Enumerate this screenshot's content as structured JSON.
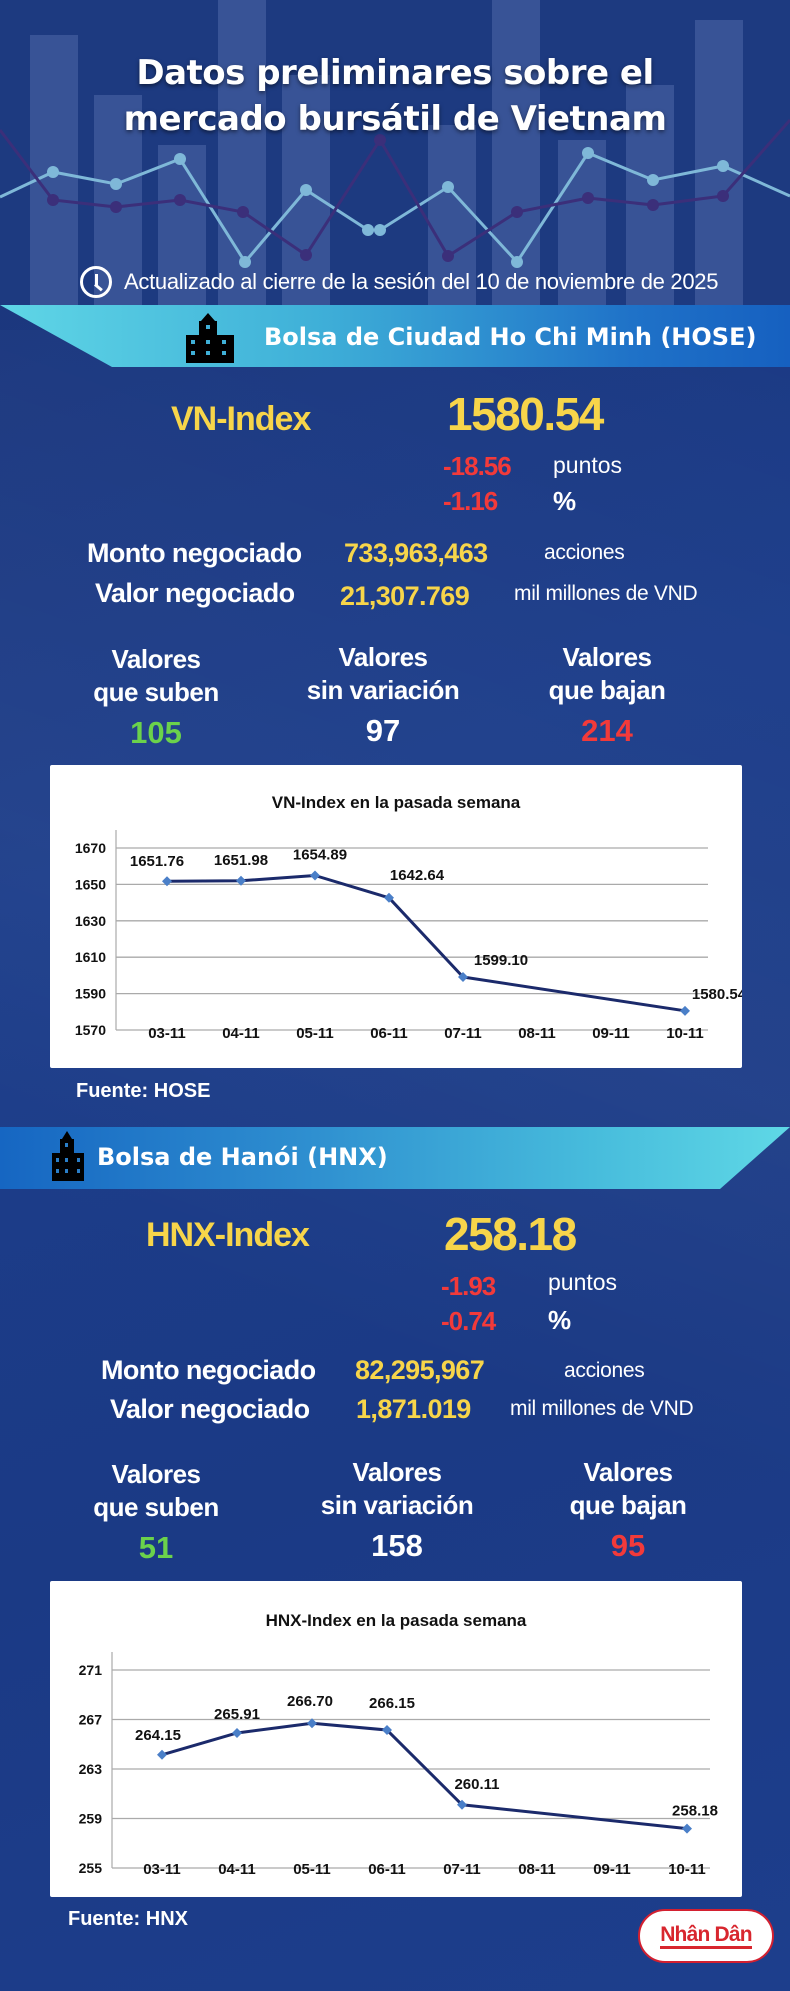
{
  "header": {
    "title_line1": "Datos preliminares sobre el",
    "title_line2": "mercado bursátil de Vietnam",
    "updated": "Actualizado al cierre de la sesión del 10 de noviembre de 2025",
    "icon": "clock-icon"
  },
  "colors": {
    "background": "#1a3a82",
    "yellow": "#f7d54a",
    "red": "#f23a3a",
    "green": "#6bd24b",
    "banner_light": "#5fd6e6",
    "banner_dark": "#1660c0",
    "chart_line": "#1b2a6b",
    "chart_marker": "#4a7fc8"
  },
  "hose": {
    "banner": "Bolsa de Ciudad Ho Chi Minh (HOSE)",
    "icon": "building-icon",
    "index_label": "VN-Index",
    "index_value": "1580.54",
    "change_points": "-18.56",
    "points_unit": "puntos",
    "change_pct": "-1.16",
    "pct_unit": "%",
    "volume_label": "Monto negociado",
    "volume_value": "733,963,463",
    "volume_unit": "acciones",
    "value_label": "Valor negociado",
    "value_value": "21,307.769",
    "value_unit": "mil millones de VND",
    "up_label_1": "Valores",
    "up_label_2": "que suben",
    "up_count": "105",
    "flat_label_1": "Valores",
    "flat_label_2": "sin variación",
    "flat_count": "97",
    "down_label_1": "Valores",
    "down_label_2": "que bajan",
    "down_count": "214",
    "source": "Fuente: HOSE"
  },
  "hnx": {
    "banner": "Bolsa de Hanói (HNX)",
    "icon": "building-icon",
    "index_label": "HNX-Index",
    "index_value": "258.18",
    "change_points": "-1.93",
    "points_unit": "puntos",
    "change_pct": "-0.74",
    "pct_unit": "%",
    "volume_label": "Monto negociado",
    "volume_value": "82,295,967",
    "volume_unit": "acciones",
    "value_label": "Valor negociado",
    "value_value": "1,871.019",
    "value_unit": "mil millones de VND",
    "up_label_1": "Valores",
    "up_label_2": "que suben",
    "up_count": "51",
    "flat_label_1": "Valores",
    "flat_label_2": "sin variación",
    "flat_count": "158",
    "down_label_1": "Valores",
    "down_label_2": "que bajan",
    "down_count": "95",
    "source": "Fuente:  HNX"
  },
  "footer": {
    "logo": "Nhân Dân"
  },
  "chart_data": [
    {
      "type": "line",
      "title": "VN-Index en la pasada semana",
      "xlabel": "",
      "ylabel": "",
      "categories": [
        "03-11",
        "04-11",
        "05-11",
        "06-11",
        "07-11",
        "08-11",
        "09-11",
        "10-11"
      ],
      "series": [
        {
          "name": "VN-Index",
          "points": [
            {
              "x": "03-11",
              "y": 1651.76
            },
            {
              "x": "04-11",
              "y": 1651.98
            },
            {
              "x": "05-11",
              "y": 1654.89
            },
            {
              "x": "06-11",
              "y": 1642.64
            },
            {
              "x": "07-11",
              "y": 1599.1
            },
            {
              "x": "10-11",
              "y": 1580.54
            }
          ]
        }
      ],
      "data_labels": [
        "1651.76",
        "1651.98",
        "1654.89",
        "1642.64",
        "1599.10",
        "1580.54"
      ],
      "yticks": [
        1570,
        1590,
        1610,
        1630,
        1650,
        1670
      ],
      "ylim": [
        1570,
        1670
      ],
      "grid": true,
      "legend": "none"
    },
    {
      "type": "line",
      "title": "HNX-Index en la pasada semana",
      "xlabel": "",
      "ylabel": "",
      "categories": [
        "03-11",
        "04-11",
        "05-11",
        "06-11",
        "07-11",
        "08-11",
        "09-11",
        "10-11"
      ],
      "series": [
        {
          "name": "HNX-Index",
          "points": [
            {
              "x": "03-11",
              "y": 264.15
            },
            {
              "x": "04-11",
              "y": 265.91
            },
            {
              "x": "05-11",
              "y": 266.7
            },
            {
              "x": "06-11",
              "y": 266.15
            },
            {
              "x": "07-11",
              "y": 260.11
            },
            {
              "x": "10-11",
              "y": 258.18
            }
          ]
        }
      ],
      "data_labels": [
        "264.15",
        "265.91",
        "266.70",
        "266.15",
        "260.11",
        "258.18"
      ],
      "yticks": [
        255,
        259,
        263,
        267,
        271
      ],
      "ylim": [
        255,
        271
      ],
      "grid": true,
      "legend": "none"
    }
  ]
}
